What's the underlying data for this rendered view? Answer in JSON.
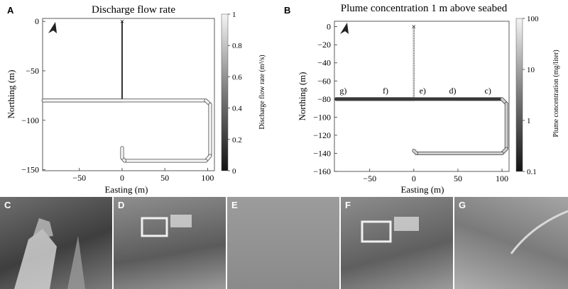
{
  "panels": {
    "a": {
      "letter": "A",
      "title": "Discharge flow rate"
    },
    "b": {
      "letter": "B",
      "title": "Plume concentration 1 m above seabed"
    }
  },
  "photos": [
    "C",
    "D",
    "E",
    "F",
    "G"
  ],
  "chart_data": [
    {
      "type": "line",
      "title": "Discharge flow rate",
      "xlabel": "Easting (m)",
      "ylabel": "Northing (m)",
      "xticks": [
        "−50",
        "0",
        "50",
        "100"
      ],
      "yticks": [
        "0",
        "−50",
        "−100",
        "−150"
      ],
      "xlim": [
        -93,
        108
      ],
      "ylim": [
        -151,
        3
      ],
      "colorbar": {
        "label": "Discharge flow rate (m³/s)",
        "ticks": [
          "1",
          "0.8",
          "0.6",
          "0.4",
          "0.2",
          "0"
        ],
        "range": [
          0,
          1
        ]
      },
      "start_marker": {
        "x": 0,
        "y": 0,
        "symbol": "×"
      },
      "track": [
        [
          0,
          0
        ],
        [
          0,
          -80
        ],
        [
          -92,
          -80
        ],
        [
          98,
          -80
        ],
        [
          103,
          -84
        ],
        [
          103,
          -136
        ],
        [
          98,
          -141
        ],
        [
          3,
          -141
        ],
        [
          0,
          -138
        ],
        [
          0,
          -128
        ]
      ],
      "segment_values": [
        0.1,
        1,
        1,
        1,
        1,
        1,
        1,
        1,
        1
      ]
    },
    {
      "type": "line",
      "title": "Plume concentration 1 m above seabed",
      "xlabel": "Easting (m)",
      "ylabel": "Northing (m)",
      "xticks": [
        "−50",
        "0",
        "50",
        "100"
      ],
      "yticks": [
        "0",
        "−20",
        "−40",
        "−60",
        "−80",
        "−100",
        "−120",
        "−140",
        "−160"
      ],
      "xlim": [
        -90,
        108
      ],
      "ylim": [
        -160,
        6
      ],
      "colorbar": {
        "label": "Plume concentration (mg/liter)",
        "ticks": [
          "100",
          "10",
          "1",
          "0.1"
        ],
        "range": [
          0.1,
          100
        ],
        "scale": "log"
      },
      "start_marker": {
        "x": 0,
        "y": 0,
        "symbol": "×"
      },
      "track": [
        [
          0,
          0
        ],
        [
          0,
          -80
        ],
        [
          -88,
          -80
        ],
        [
          100,
          -80
        ],
        [
          105,
          -85
        ],
        [
          105,
          -135
        ],
        [
          100,
          -140
        ],
        [
          3,
          -140
        ],
        [
          0,
          -137
        ]
      ],
      "segment_values": [
        60,
        0.3,
        0.3,
        30,
        30,
        30,
        30,
        30
      ],
      "annotations": [
        {
          "text": "g)",
          "x": -80,
          "y": -74
        },
        {
          "text": "f)",
          "x": -32,
          "y": -74
        },
        {
          "text": "e)",
          "x": 10,
          "y": -74
        },
        {
          "text": "d)",
          "x": 44,
          "y": -74
        },
        {
          "text": "c)",
          "x": 84,
          "y": -74
        }
      ]
    }
  ]
}
